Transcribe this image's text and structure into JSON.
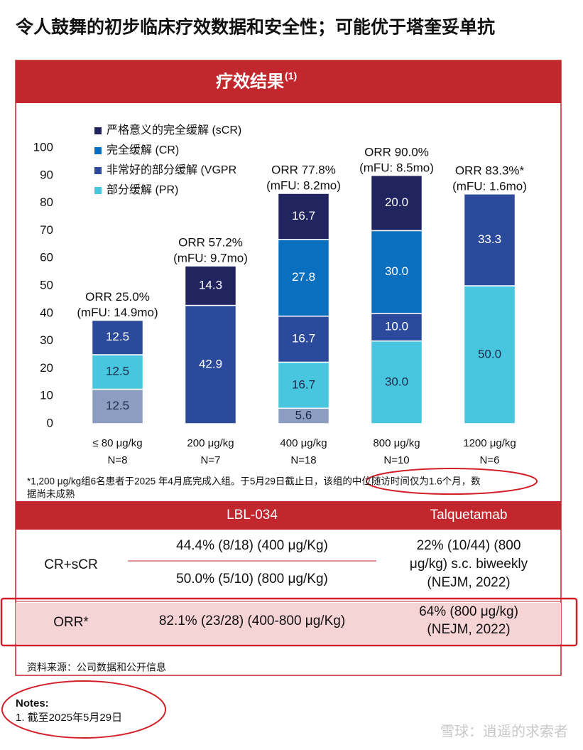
{
  "title": "令人鼓舞的初步临床疗效数据和安全性；可能优于塔奎妥单抗",
  "panel_title": "疗效结果",
  "panel_title_sup": "(1)",
  "chart_data": {
    "type": "stacked_bar",
    "categories": [
      "≤ 80 μg/kg",
      "200 μg/kg",
      "400 μg/kg",
      "800 μg/kg",
      "1200 μg/kg"
    ],
    "sample_sizes": [
      "N=8",
      "N=7",
      "N=18",
      "N=10",
      "N=6"
    ],
    "annotations": [
      [
        "ORR 25.0%",
        "(mFU: 14.9mo)"
      ],
      [
        "ORR 57.2%",
        "(mFU: 9.7mo)"
      ],
      [
        "ORR 77.8%",
        "(mFU: 8.2mo)"
      ],
      [
        "ORR 90.0%",
        "(mFU: 8.5mo)"
      ],
      [
        "ORR 83.3%*",
        "(mFU: 1.6mo)"
      ]
    ],
    "series": [
      {
        "color": "#8d9dc2",
        "values": [
          12.5,
          null,
          5.6,
          null,
          null
        ],
        "value_labels": [
          "12.5",
          null,
          "5.6",
          null,
          null
        ]
      },
      {
        "name": "部分缓解 (PR)",
        "color": "#48c5df",
        "values": [
          12.5,
          null,
          16.7,
          30,
          50
        ],
        "value_labels": [
          "12.5",
          null,
          "16.7",
          "30.0",
          "50.0"
        ]
      },
      {
        "name": "非常好的部分缓解 (VGPR",
        "color": "#2b4a9b",
        "values": [
          12.5,
          42.9,
          16.7,
          10,
          33.3
        ],
        "value_labels": [
          "12.5",
          "42.9",
          "16.7",
          "10.0",
          "33.3"
        ]
      },
      {
        "name": "完全缓解 (CR)",
        "color": "#0b6fc0",
        "values": [
          null,
          null,
          27.8,
          30,
          null
        ],
        "value_labels": [
          null,
          null,
          "27.8",
          "30.0",
          null
        ]
      },
      {
        "name": "严格意义的完全缓解 (sCR)",
        "color": "#20245f",
        "values": [
          null,
          14.3,
          16.7,
          20,
          null
        ],
        "value_labels": [
          null,
          "14.3",
          "16.7",
          "20.0",
          null
        ]
      }
    ],
    "ylim": [
      0,
      100
    ],
    "yticks": [
      0,
      10,
      20,
      30,
      40,
      50,
      60,
      70,
      80,
      90,
      100
    ],
    "grid": false
  },
  "footnote": [
    "*1,200 μg/kg组6名患者于2025 年4月底完成入组。于5月29日截止日，该组的中位随访时间仅为1.6个月，数",
    "据尚未成熟"
  ],
  "table": {
    "header": [
      "LBL-034",
      "Talquetamab"
    ],
    "rows": [
      {
        "label": "CR+sCR",
        "lbl": [
          "44.4% (8/18)  (400 μg/Kg)",
          "50.0% (5/10) (800 μg/Kg)"
        ],
        "talq": [
          "22% (10/44) (800",
          "μg/kg) s.c. biweekly",
          "(NEJM, 2022)"
        ]
      },
      {
        "label": "ORR*",
        "lbl": [
          "82.1% (23/28) (400-800 μg/Kg)"
        ],
        "talq": [
          "64% (800 μg/kg)",
          "(NEJM, 2022)"
        ]
      }
    ]
  },
  "source": "资料来源：公司数据和公开信息",
  "notes_title": "Notes:",
  "notes": [
    "1. 截至2025年5月29日"
  ],
  "watermark": "雪球：逍遥的求索者"
}
